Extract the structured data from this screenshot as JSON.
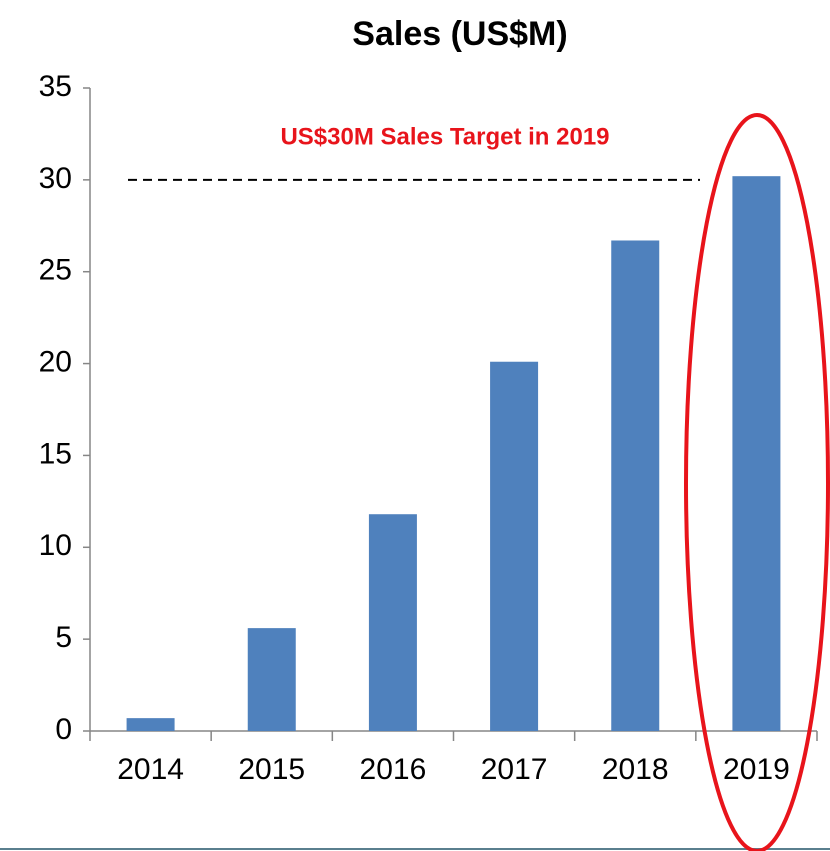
{
  "chart_data": {
    "type": "bar",
    "title": "Sales (US$M)",
    "categories": [
      "2014",
      "2015",
      "2016",
      "2017",
      "2018",
      "2019"
    ],
    "values": [
      0.7,
      5.6,
      11.8,
      20.1,
      26.7,
      30.2
    ],
    "color": "#4f81bd",
    "ylim": [
      0,
      35
    ],
    "yticks": [
      0,
      5,
      10,
      15,
      20,
      25,
      30,
      35
    ],
    "annotation": "US$30M Sales Target in 2019",
    "target_line": 30
  }
}
